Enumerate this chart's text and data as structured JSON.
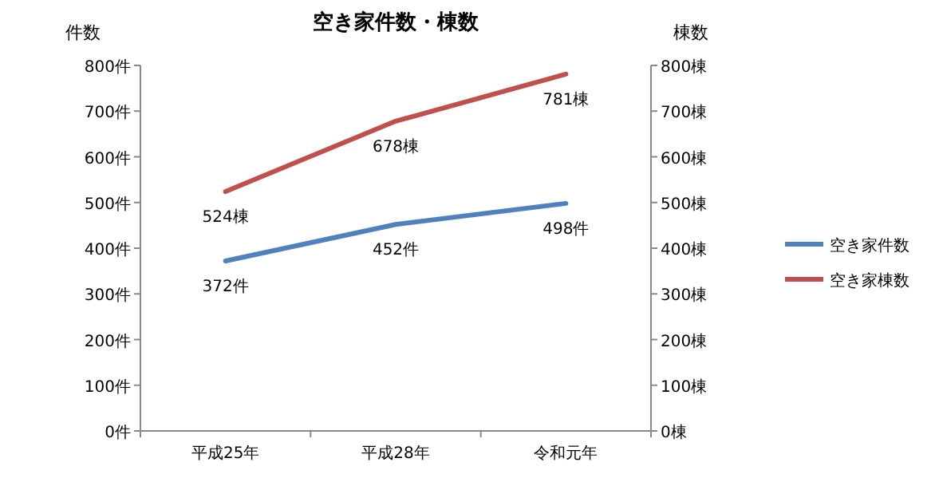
{
  "chart_data": {
    "type": "line",
    "title": "空き家件数・棟数",
    "ylabel": "件数",
    "y2label": "棟数",
    "categories": [
      "平成25年",
      "平成28年",
      "令和元年"
    ],
    "series": [
      {
        "name": "空き家件数",
        "color": "#4f81bd",
        "values": [
          372,
          452,
          498
        ],
        "value_labels": [
          "372件",
          "452件",
          "498件"
        ]
      },
      {
        "name": "空き家棟数",
        "color": "#c0504d",
        "values": [
          524,
          678,
          781
        ],
        "value_labels": [
          "524棟",
          "678棟",
          "781棟"
        ],
        "axis": "y2"
      }
    ],
    "ylim": [
      0,
      800
    ],
    "yticks": [
      {
        "value": 0,
        "label": "0件"
      },
      {
        "value": 100,
        "label": "100件"
      },
      {
        "value": 200,
        "label": "200件"
      },
      {
        "value": 300,
        "label": "300件"
      },
      {
        "value": 400,
        "label": "400件"
      },
      {
        "value": 500,
        "label": "500件"
      },
      {
        "value": 600,
        "label": "600件"
      },
      {
        "value": 700,
        "label": "700件"
      },
      {
        "value": 800,
        "label": "800件"
      }
    ],
    "y2lim": [
      0,
      800
    ],
    "y2ticks": [
      {
        "value": 0,
        "label": "0棟"
      },
      {
        "value": 100,
        "label": "100棟"
      },
      {
        "value": 200,
        "label": "200棟"
      },
      {
        "value": 300,
        "label": "300棟"
      },
      {
        "value": 400,
        "label": "400棟"
      },
      {
        "value": 500,
        "label": "500棟"
      },
      {
        "value": 600,
        "label": "600棟"
      },
      {
        "value": 700,
        "label": "700棟"
      },
      {
        "value": 800,
        "label": "800棟"
      }
    ],
    "legend": "right"
  }
}
